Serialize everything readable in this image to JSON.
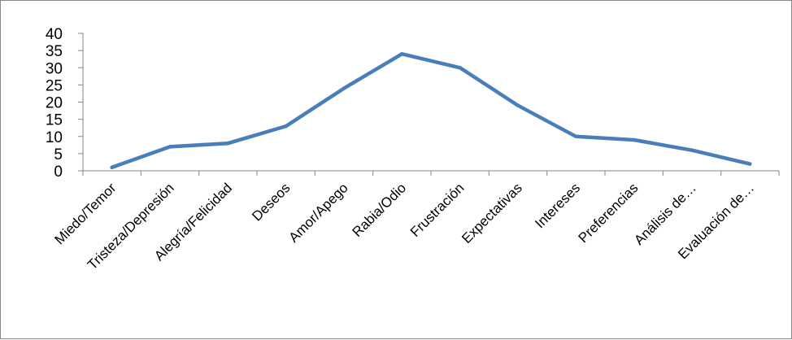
{
  "chart_data": {
    "type": "line",
    "categories": [
      "Miedo/Temor",
      "Tristeza/Depresión",
      "Alegría/Felicidad",
      "Deseos",
      "Amor/Apego",
      "Rabia/Odio",
      "Frustración",
      "Expectativas",
      "Intereses",
      "Preferencias",
      "Análisis de…",
      "Evaluación de…"
    ],
    "series": [
      {
        "values": [
          1,
          7,
          8,
          13,
          24,
          34,
          30,
          19,
          10,
          9,
          6,
          2
        ]
      }
    ],
    "ylim": [
      0,
      40
    ],
    "yticks": [
      0,
      5,
      10,
      15,
      20,
      25,
      30,
      35,
      40
    ],
    "grid": false,
    "legend": "none",
    "colors": {
      "line": "#4a7ebb",
      "axis": "#868686"
    }
  }
}
